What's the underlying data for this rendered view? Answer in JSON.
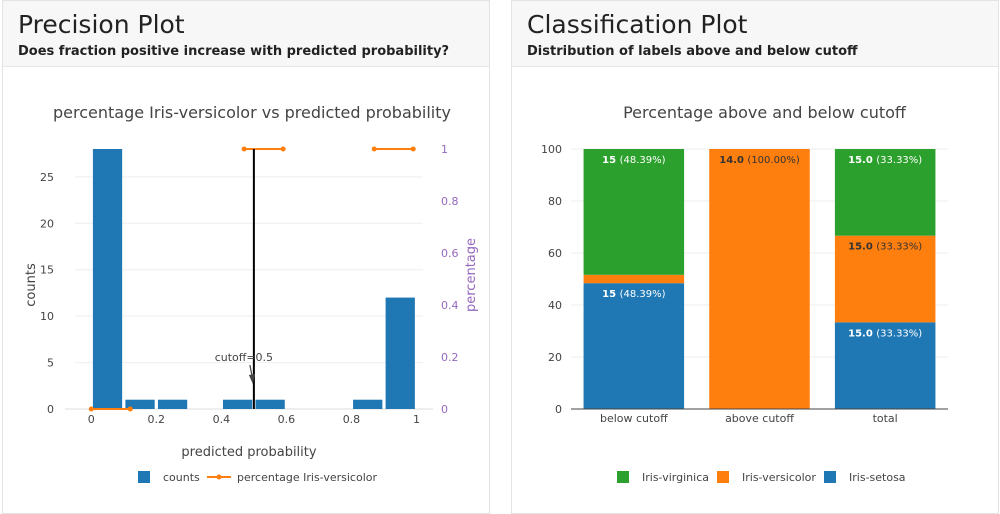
{
  "precision_card": {
    "title": "Precision Plot",
    "subtitle": "Does fraction positive increase with predicted probability?"
  },
  "classification_card": {
    "title": "Classification Plot",
    "subtitle": "Distribution of labels above and below cutoff"
  },
  "colors": {
    "blue": "#1f77b4",
    "orange": "#ff7f0e",
    "green": "#2ca02c",
    "purple_axis": "#9467bd",
    "grid": "#eeeeee",
    "text": "#444444"
  },
  "chart_data": [
    {
      "type": "bar",
      "title": "percentage Iris-versicolor vs predicted probability",
      "xlabel": "predicted probability",
      "ylabel": "counts",
      "y2label": "percentage",
      "xlim": [
        -0.05,
        1.02
      ],
      "ylim": [
        0,
        28
      ],
      "y2lim": [
        0,
        1
      ],
      "xticks": [
        "0",
        "0.2",
        "0.4",
        "0.6",
        "0.8",
        "1"
      ],
      "xtick_values": [
        0,
        0.2,
        0.4,
        0.6,
        0.8,
        1
      ],
      "yticks": [
        "0",
        "5",
        "10",
        "15",
        "20",
        "25"
      ],
      "ytick_values": [
        0,
        5,
        10,
        15,
        20,
        25
      ],
      "y2ticks": [
        "0",
        "0.2",
        "0.4",
        "0.6",
        "0.8",
        "1"
      ],
      "y2tick_values": [
        0,
        0.2,
        0.4,
        0.6,
        0.8,
        1
      ],
      "bar_width": 0.09,
      "bars": [
        {
          "x": 0.05,
          "count": 28
        },
        {
          "x": 0.15,
          "count": 1
        },
        {
          "x": 0.25,
          "count": 1
        },
        {
          "x": 0.45,
          "count": 1
        },
        {
          "x": 0.55,
          "count": 1
        },
        {
          "x": 0.85,
          "count": 1
        },
        {
          "x": 0.95,
          "count": 12
        }
      ],
      "line_segments": [
        [
          {
            "x": 0.0,
            "y": 0
          },
          {
            "x": 0.12,
            "y": 0
          }
        ],
        [
          {
            "x": 0.47,
            "y": 1
          },
          {
            "x": 0.59,
            "y": 1
          }
        ],
        [
          {
            "x": 0.87,
            "y": 1
          },
          {
            "x": 0.99,
            "y": 1
          }
        ]
      ],
      "cutoff": {
        "value": 0.5,
        "label": "cutoff=0.5"
      },
      "legend": [
        "counts",
        "percentage Iris-versicolor"
      ],
      "legend_placement": "bottom"
    },
    {
      "type": "bar",
      "stacked": true,
      "title": "Percentage above and below cutoff",
      "categories": [
        "below cutoff",
        "above cutoff",
        "total"
      ],
      "ylim": [
        0,
        100
      ],
      "yticks": [
        "0",
        "20",
        "40",
        "60",
        "80",
        "100"
      ],
      "ytick_values": [
        0,
        20,
        40,
        60,
        80,
        100
      ],
      "series": [
        {
          "name": "Iris-setosa",
          "color": "#1f77b4",
          "values": [
            48.39,
            0,
            33.33
          ],
          "labels": [
            {
              "count": "15",
              "pct": "(48.39%)"
            },
            null,
            {
              "count": "15.0",
              "pct": "(33.33%)"
            }
          ]
        },
        {
          "name": "Iris-versicolor",
          "color": "#ff7f0e",
          "values": [
            3.22,
            100,
            33.33
          ],
          "labels": [
            null,
            {
              "count": "14.0",
              "pct": "(100.00%)"
            },
            {
              "count": "15.0",
              "pct": "(33.33%)"
            }
          ]
        },
        {
          "name": "Iris-virginica",
          "color": "#2ca02c",
          "values": [
            48.39,
            0,
            33.33
          ],
          "labels": [
            {
              "count": "15",
              "pct": "(48.39%)"
            },
            null,
            {
              "count": "15.0",
              "pct": "(33.33%)"
            }
          ]
        }
      ],
      "legend": [
        "Iris-virginica",
        "Iris-versicolor",
        "Iris-setosa"
      ],
      "legend_placement": "bottom"
    }
  ]
}
